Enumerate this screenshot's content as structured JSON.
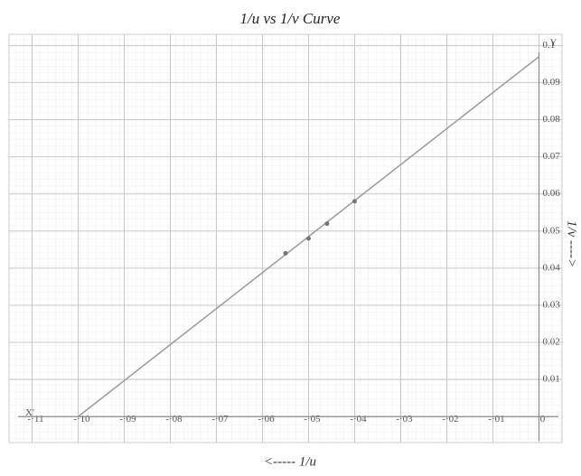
{
  "chart_data": {
    "type": "line",
    "title": "1/u vs 1/v Curve",
    "x_label": "<----- 1/u",
    "y_label": "1/v ---->",
    "axis_labels": {
      "x": "X'",
      "y": "Y"
    },
    "xlim": [
      -0.115,
      0.005
    ],
    "ylim": [
      -0.007,
      0.103
    ],
    "xticks": [
      {
        "value": -0.11,
        "label": "-·11"
      },
      {
        "value": -0.1,
        "label": "-·10"
      },
      {
        "value": -0.09,
        "label": "-·09"
      },
      {
        "value": -0.08,
        "label": "-·08"
      },
      {
        "value": -0.07,
        "label": "-·07"
      },
      {
        "value": -0.06,
        "label": "-·06"
      },
      {
        "value": -0.05,
        "label": "-·05"
      },
      {
        "value": -0.04,
        "label": "-·04"
      },
      {
        "value": -0.03,
        "label": "-·03"
      },
      {
        "value": -0.02,
        "label": "-·02"
      },
      {
        "value": -0.01,
        "label": "-·01"
      },
      0
    ],
    "yticks": [
      0.01,
      0.02,
      0.03,
      0.04,
      0.05,
      0.06,
      0.07,
      0.08,
      0.09,
      0.1
    ],
    "grid": true,
    "series": [
      {
        "color": "#9a9a9a",
        "x": [
          -0.1,
          0
        ],
        "values": [
          0,
          0.097
        ]
      }
    ],
    "points": {
      "color": "#777777",
      "x": [
        -0.055,
        -0.05,
        -0.046,
        -0.04
      ],
      "values": [
        0.044,
        0.048,
        0.052,
        0.058
      ]
    }
  }
}
